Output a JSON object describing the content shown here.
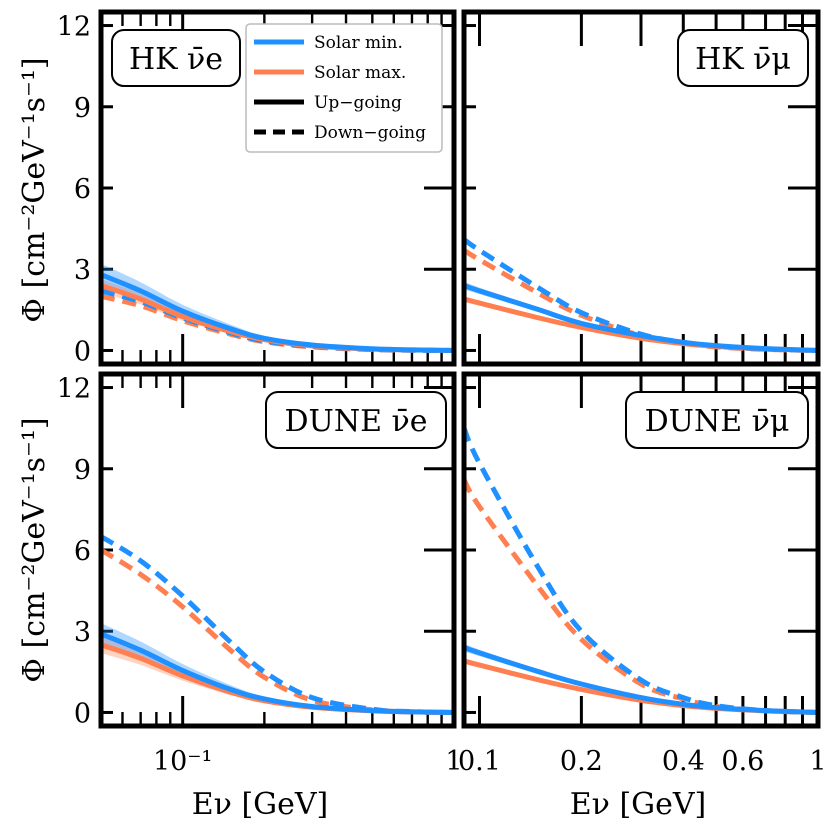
{
  "colors": {
    "solar_min": "#1e90ff",
    "solar_max": "#ff7f50",
    "band_min": "#1e90ff",
    "band_max": "#ff7f50"
  },
  "legend": {
    "items": [
      {
        "label": "Solar min.",
        "style": "solid-blue"
      },
      {
        "label": "Solar max.",
        "style": "solid-orange"
      },
      {
        "label": "Up−going",
        "style": "solid-black"
      },
      {
        "label": "Down−going",
        "style": "dashed-black"
      }
    ]
  },
  "y_axis_label": "Φ [cm⁻²GeV⁻¹s⁻¹]",
  "x_axis_label": "Eν [GeV]",
  "chart_data": [
    {
      "panel": "top-left",
      "type": "line",
      "title": "HK ν̄e",
      "xlabel": "",
      "ylabel": "Φ [cm⁻²GeV⁻¹s⁻¹]",
      "xscale": "log",
      "xlim": [
        0.05,
        1.0
      ],
      "ylim": [
        -0.5,
        12.5
      ],
      "yticks": [
        0,
        3,
        6,
        9,
        12
      ],
      "yticklabels": [
        "0",
        "3",
        "6",
        "9",
        "12"
      ],
      "x": [
        0.05,
        0.07,
        0.1,
        0.15,
        0.2,
        0.3,
        0.5,
        0.7,
        1.0
      ],
      "series": [
        {
          "name": "Solar min. up-going",
          "values": [
            2.8,
            2.2,
            1.45,
            0.8,
            0.45,
            0.2,
            0.06,
            0.02,
            0.0
          ],
          "band": 0.4
        },
        {
          "name": "Solar max. up-going",
          "values": [
            2.4,
            1.9,
            1.25,
            0.7,
            0.4,
            0.17,
            0.05,
            0.02,
            0.0
          ],
          "band": 0.25
        },
        {
          "name": "Solar min. down-going",
          "values": [
            2.2,
            1.8,
            1.2,
            0.65,
            0.35,
            0.15,
            0.04,
            0.01,
            0.0
          ]
        },
        {
          "name": "Solar max. down-going",
          "values": [
            2.0,
            1.65,
            1.1,
            0.6,
            0.32,
            0.13,
            0.03,
            0.01,
            0.0
          ]
        }
      ]
    },
    {
      "panel": "top-right",
      "type": "line",
      "title": "HK ν̄μ",
      "xlabel": "",
      "ylabel": "",
      "xscale": "log",
      "xlim": [
        0.09,
        1.0
      ],
      "ylim": [
        -0.5,
        12.5
      ],
      "x": [
        0.09,
        0.1,
        0.15,
        0.2,
        0.3,
        0.4,
        0.5,
        0.7,
        1.0
      ],
      "series": [
        {
          "name": "Solar min. up-going",
          "values": [
            2.4,
            2.2,
            1.5,
            1.0,
            0.55,
            0.3,
            0.18,
            0.07,
            0.0
          ],
          "band": 0.15
        },
        {
          "name": "Solar max. up-going",
          "values": [
            1.9,
            1.75,
            1.2,
            0.85,
            0.45,
            0.25,
            0.15,
            0.06,
            0.0
          ],
          "band": 0.1
        },
        {
          "name": "Solar min. down-going",
          "values": [
            4.1,
            3.7,
            2.3,
            1.4,
            0.6,
            0.3,
            0.15,
            0.05,
            0.0
          ]
        },
        {
          "name": "Solar max. down-going",
          "values": [
            3.7,
            3.35,
            2.1,
            1.3,
            0.55,
            0.27,
            0.13,
            0.04,
            0.0
          ]
        }
      ]
    },
    {
      "panel": "bottom-left",
      "type": "line",
      "title": "DUNE ν̄e",
      "xlabel": "Eν [GeV]",
      "ylabel": "Φ [cm⁻²GeV⁻¹s⁻¹]",
      "xscale": "log",
      "xlim": [
        0.05,
        1.0
      ],
      "ylim": [
        -0.5,
        12.5
      ],
      "yticks": [
        0,
        3,
        6,
        9,
        12
      ],
      "yticklabels": [
        "0",
        "3",
        "6",
        "9",
        "12"
      ],
      "xticklabels": [
        "10⁻¹",
        "1"
      ],
      "x": [
        0.05,
        0.07,
        0.1,
        0.15,
        0.2,
        0.3,
        0.5,
        0.7,
        1.0
      ],
      "series": [
        {
          "name": "Solar min. up-going",
          "values": [
            2.9,
            2.3,
            1.55,
            0.85,
            0.5,
            0.22,
            0.07,
            0.02,
            0.0
          ],
          "band": 0.4
        },
        {
          "name": "Solar max. up-going",
          "values": [
            2.5,
            2.0,
            1.35,
            0.75,
            0.43,
            0.19,
            0.06,
            0.02,
            0.0
          ],
          "band": 0.3
        },
        {
          "name": "Solar min. down-going",
          "values": [
            6.5,
            5.6,
            4.3,
            2.6,
            1.5,
            0.55,
            0.12,
            0.03,
            0.0
          ]
        },
        {
          "name": "Solar max. down-going",
          "values": [
            6.0,
            5.1,
            3.9,
            2.3,
            1.3,
            0.45,
            0.1,
            0.02,
            0.0
          ]
        }
      ]
    },
    {
      "panel": "bottom-right",
      "type": "line",
      "title": "DUNE ν̄μ",
      "xlabel": "Eν [GeV]",
      "ylabel": "",
      "xscale": "log",
      "xlim": [
        0.09,
        1.0
      ],
      "ylim": [
        -0.5,
        12.5
      ],
      "xticks": [
        0.1,
        0.2,
        0.4,
        0.6,
        1.0
      ],
      "xticklabels": [
        "0.1",
        "0.2",
        "0.4",
        "0.6",
        "1"
      ],
      "x": [
        0.09,
        0.1,
        0.15,
        0.2,
        0.3,
        0.4,
        0.5,
        0.7,
        1.0
      ],
      "series": [
        {
          "name": "Solar min. up-going",
          "values": [
            2.4,
            2.2,
            1.5,
            1.05,
            0.55,
            0.3,
            0.18,
            0.07,
            0.0
          ],
          "band": 0.15
        },
        {
          "name": "Solar max. up-going",
          "values": [
            1.9,
            1.75,
            1.2,
            0.85,
            0.45,
            0.25,
            0.15,
            0.06,
            0.0
          ],
          "band": 0.1
        },
        {
          "name": "Solar min. down-going",
          "values": [
            10.5,
            9.2,
            5.3,
            3.0,
            1.2,
            0.55,
            0.25,
            0.07,
            0.0
          ]
        },
        {
          "name": "Solar max. down-going",
          "values": [
            8.6,
            7.6,
            4.6,
            2.7,
            1.05,
            0.5,
            0.22,
            0.06,
            0.0
          ]
        }
      ]
    }
  ]
}
